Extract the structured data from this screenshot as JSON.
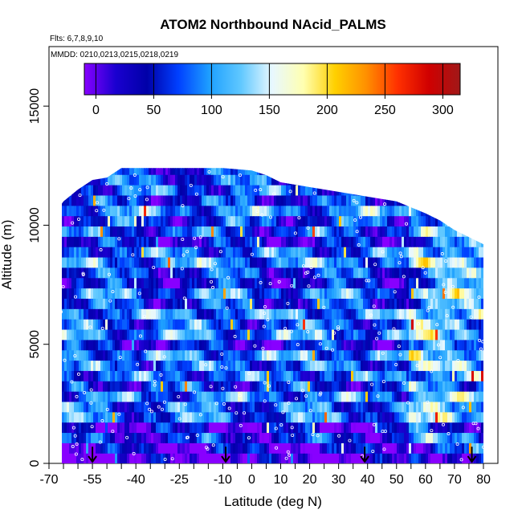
{
  "chart_data": {
    "type": "heatmap",
    "title": "ATOM2 Northbound NAcid_PALMS",
    "flights_label": "Flts: 6,7,8,9,10",
    "dates_label": "MMDD: 0210,0213,0215,0218,0219",
    "xlabel": "Latitude (deg N)",
    "ylabel": "Altitude (m)",
    "xlim": [
      -70,
      85
    ],
    "ylim": [
      0,
      17500
    ],
    "x_ticks": [
      -70,
      -55,
      -40,
      -25,
      -10,
      0,
      10,
      20,
      30,
      40,
      50,
      60,
      70,
      80
    ],
    "x_tick_labels": [
      "-70",
      "-55",
      "-40",
      "-25",
      "-10",
      "0",
      "10",
      "20",
      "30",
      "40",
      "50",
      "60",
      "70",
      "80"
    ],
    "x_minor_ticks": [
      -65,
      -60,
      -50,
      -45,
      -35,
      -30,
      -20,
      -15,
      -5,
      5,
      15,
      25,
      35,
      45,
      55,
      65,
      75
    ],
    "y_ticks": [
      0,
      5000,
      10000,
      15000
    ],
    "y_tick_labels": [
      "0",
      "5000",
      "10000",
      "15000"
    ],
    "colorbar": {
      "min": -10,
      "max": 315,
      "ticks": [
        0,
        50,
        100,
        150,
        200,
        250,
        300
      ],
      "tick_labels": [
        "0",
        "50",
        "100",
        "150",
        "200",
        "250",
        "300"
      ],
      "colors": [
        "#8800ff",
        "#1a00d0",
        "#0000a8",
        "#0040ff",
        "#1ea0ff",
        "#60c8ff",
        "#e8f8ff",
        "#ffffb0",
        "#ffd000",
        "#ff9000",
        "#ff3000",
        "#d00000",
        "#a01818"
      ]
    },
    "flight_arrows_lat": [
      -55,
      -9,
      39,
      76
    ],
    "arrow_altitude_top": 700,
    "profile_top_altitude": [
      [
        -68,
        10500
      ],
      [
        -65,
        11000
      ],
      [
        -60,
        11500
      ],
      [
        -55,
        11900
      ],
      [
        -50,
        12000
      ],
      [
        -45,
        12400
      ],
      [
        -40,
        12400
      ],
      [
        -30,
        12400
      ],
      [
        -20,
        12400
      ],
      [
        -10,
        12400
      ],
      [
        0,
        12300
      ],
      [
        5,
        12100
      ],
      [
        10,
        11800
      ],
      [
        20,
        11600
      ],
      [
        30,
        11400
      ],
      [
        40,
        11200
      ],
      [
        50,
        11000
      ],
      [
        60,
        10500
      ],
      [
        65,
        10200
      ],
      [
        70,
        9800
      ],
      [
        75,
        9500
      ],
      [
        80,
        9200
      ]
    ]
  }
}
